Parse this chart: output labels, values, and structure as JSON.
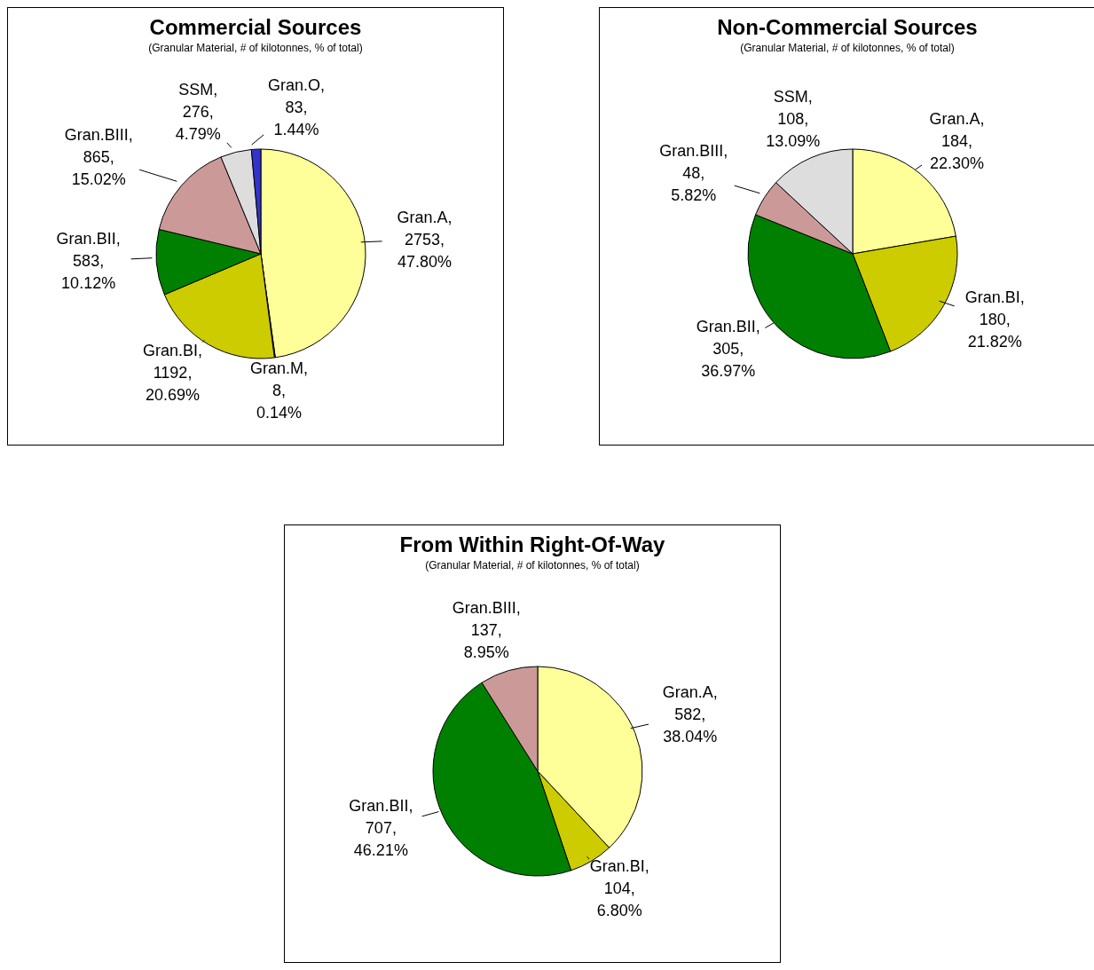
{
  "chart_data": [
    {
      "type": "pie",
      "title": "Commercial Sources",
      "subtitle": "(Granular Material, # of kilotonnes, % of total)",
      "categories": [
        "Gran.A",
        "Gran.M",
        "Gran.BI",
        "Gran.BII",
        "Gran.BIII",
        "SSM",
        "Gran.O"
      ],
      "values": [
        2753,
        8,
        1192,
        583,
        865,
        276,
        83
      ],
      "value_labels": [
        ", 2753, 47.80%",
        ", 8, 0.14%",
        ", 1192, 20.69%",
        ", 583, 10.12%",
        ", 865, 15.02%",
        ", 276, 4.79%",
        ", 83, 1.44%"
      ],
      "colors": [
        "#ffff99",
        "#333399",
        "#cccc00",
        "#008000",
        "#cc9999",
        "#dddddd",
        "#3333cc"
      ]
    },
    {
      "type": "pie",
      "title": "Non-Commercial Sources",
      "subtitle": "(Granular Material, # of kilotonnes, % of total)",
      "categories": [
        "Gran.A",
        "Gran.BI",
        "Gran.BII",
        "Gran.BIII",
        "SSM"
      ],
      "values": [
        184,
        180,
        305,
        48,
        108
      ],
      "value_labels": [
        ", 184, 22.30%",
        ", 180, 21.82%",
        ", 305, 36.97%",
        ", 48, 5.82%",
        ", 108, 13.09%"
      ],
      "colors": [
        "#ffff99",
        "#cccc00",
        "#008000",
        "#cc9999",
        "#dddddd"
      ]
    },
    {
      "type": "pie",
      "title": "From Within Right-Of-Way",
      "subtitle": "(Granular Material, # of kilotonnes, % of total)",
      "categories": [
        "Gran.A",
        "Gran.BI",
        "Gran.BII",
        "Gran.BIII"
      ],
      "values": [
        582,
        104,
        707,
        137
      ],
      "value_labels": [
        ", 582, 38.04%",
        ", 104, 6.80%",
        ", 707, 46.21%",
        ", 137, 8.95%"
      ],
      "colors": [
        "#ffff99",
        "#cccc00",
        "#008000",
        "#cc9999"
      ]
    }
  ]
}
